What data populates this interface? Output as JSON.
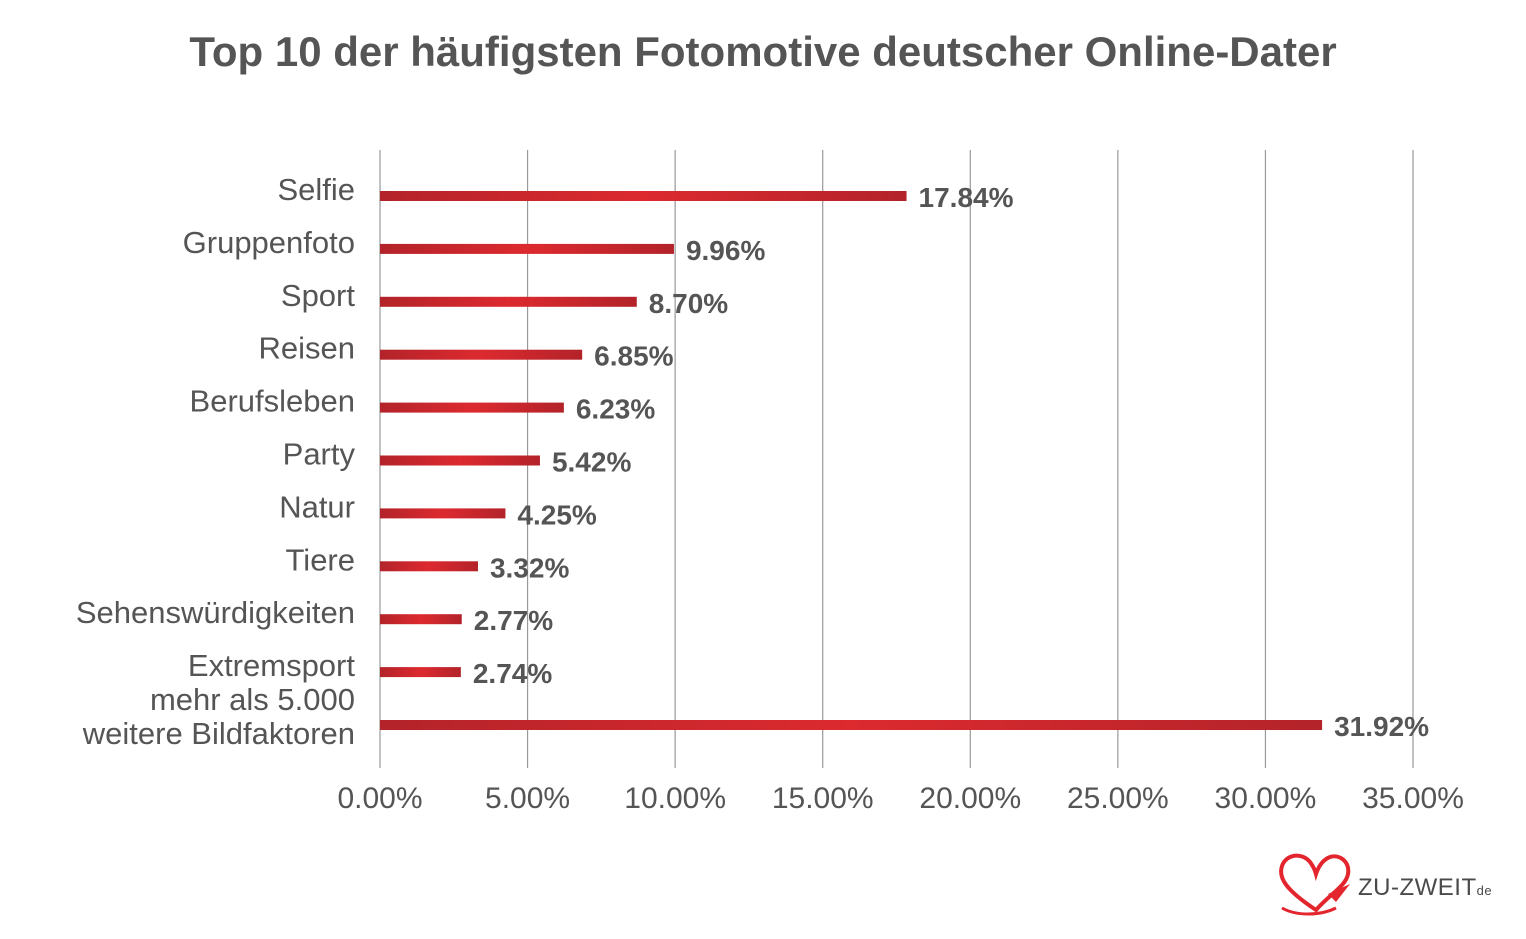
{
  "chart_data": {
    "type": "bar",
    "orientation": "horizontal",
    "title": "Top 10 der häufigsten Fotomotive deutscher Online-Dater",
    "categories": [
      [
        "Selfie"
      ],
      [
        "Gruppenfoto"
      ],
      [
        "Sport"
      ],
      [
        "Reisen"
      ],
      [
        "Berufsleben"
      ],
      [
        "Party"
      ],
      [
        "Natur"
      ],
      [
        "Tiere"
      ],
      [
        "Sehenswürdigkeiten"
      ],
      [
        "Extremsport"
      ],
      [
        "mehr als 5.000",
        "weitere Bildfaktoren"
      ]
    ],
    "values": [
      17.84,
      9.96,
      8.7,
      6.85,
      6.23,
      5.42,
      4.25,
      3.32,
      2.77,
      2.74,
      31.92
    ],
    "value_labels": [
      "17.84%",
      "9.96%",
      "8.70%",
      "6.85%",
      "6.23%",
      "5.42%",
      "4.25%",
      "3.32%",
      "2.77%",
      "2.74%",
      "31.92%"
    ],
    "xlim": [
      0,
      35
    ],
    "x_ticks": [
      0,
      5,
      10,
      15,
      20,
      25,
      30,
      35
    ],
    "x_tick_labels": [
      "0.00%",
      "5.00%",
      "10.00%",
      "15.00%",
      "20.00%",
      "25.00%",
      "30.00%",
      "35.00%"
    ],
    "grid": "vertical",
    "bar_color": "#dc2a2f",
    "bar_color_dark": "#b3232a",
    "text_color": "#555555",
    "grid_color": "#999999"
  },
  "brand": {
    "name": "ZU-ZWEIT",
    "suffix": "de",
    "heart_color": "#e3262d"
  }
}
